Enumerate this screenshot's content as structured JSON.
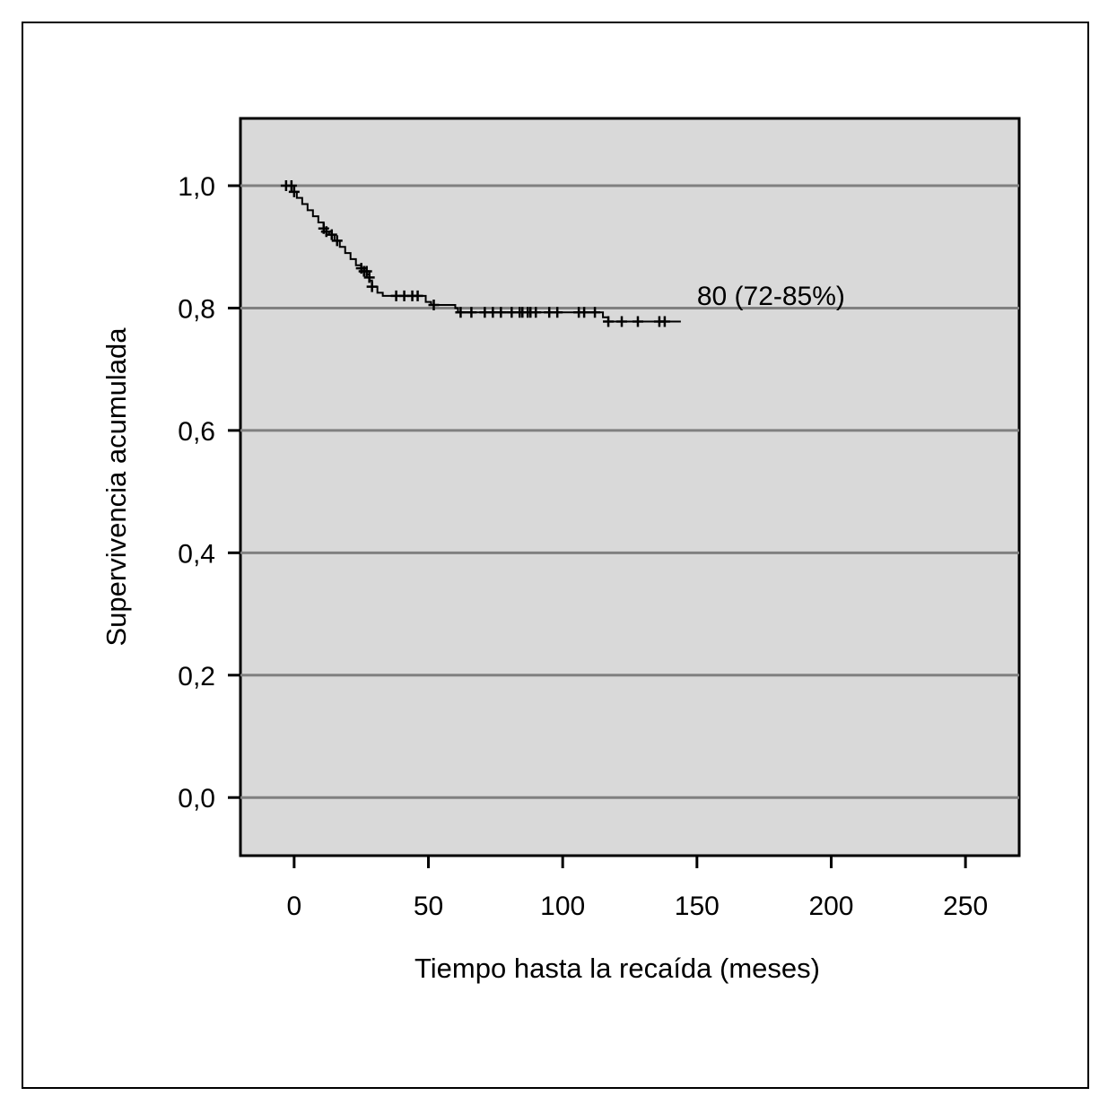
{
  "chart_data": {
    "type": "line",
    "xlabel": "Tiempo hasta la recaída (meses)",
    "ylabel": "Supervivencia acumulada",
    "xlim": [
      -20,
      270
    ],
    "ylim": [
      -0.095,
      1.11
    ],
    "xticks": [
      0,
      50,
      100,
      150,
      200,
      250
    ],
    "xtick_labels": [
      "0",
      "50",
      "100",
      "150",
      "200",
      "250"
    ],
    "yticks": [
      0.0,
      0.2,
      0.4,
      0.6,
      0.8,
      1.0
    ],
    "ytick_labels": [
      "0,0",
      "0,2",
      "0,4",
      "0,6",
      "0,8",
      "1,0"
    ],
    "grid": "horizontal",
    "legend": "none",
    "annotation": {
      "text": "80 (72-85%)",
      "x": 150,
      "y": 0.82
    },
    "colors": {
      "plot_background": "#d9d9d9",
      "gridline": "#808080",
      "line": "#000000"
    },
    "series": [
      {
        "steps": [
          [
            -4,
            1.0
          ],
          [
            0,
            0.99
          ],
          [
            1,
            0.98
          ],
          [
            3,
            0.97
          ],
          [
            5,
            0.96
          ],
          [
            7,
            0.95
          ],
          [
            9,
            0.94
          ],
          [
            11,
            0.93
          ],
          [
            12,
            0.925
          ],
          [
            13,
            0.92
          ],
          [
            15,
            0.91
          ],
          [
            17,
            0.9
          ],
          [
            19,
            0.89
          ],
          [
            21,
            0.88
          ],
          [
            23,
            0.87
          ],
          [
            25,
            0.86
          ],
          [
            27,
            0.855
          ],
          [
            28,
            0.845
          ],
          [
            29,
            0.835
          ],
          [
            31,
            0.825
          ],
          [
            33,
            0.82
          ],
          [
            49,
            0.81
          ],
          [
            51,
            0.805
          ],
          [
            60,
            0.8
          ],
          [
            61,
            0.793
          ],
          [
            115,
            0.785
          ],
          [
            117,
            0.778
          ],
          [
            144,
            0.778
          ]
        ],
        "censored": [
          [
            -3,
            1.0
          ],
          [
            -1,
            1.0
          ],
          [
            0,
            0.99
          ],
          [
            11,
            0.93
          ],
          [
            12,
            0.925
          ],
          [
            14,
            0.92
          ],
          [
            16,
            0.91
          ],
          [
            25,
            0.865
          ],
          [
            26,
            0.86
          ],
          [
            27,
            0.86
          ],
          [
            28,
            0.85
          ],
          [
            29,
            0.835
          ],
          [
            38,
            0.82
          ],
          [
            41,
            0.82
          ],
          [
            44,
            0.82
          ],
          [
            46,
            0.82
          ],
          [
            52,
            0.805
          ],
          [
            62,
            0.793
          ],
          [
            66,
            0.793
          ],
          [
            71,
            0.793
          ],
          [
            74,
            0.793
          ],
          [
            77,
            0.793
          ],
          [
            81,
            0.793
          ],
          [
            84,
            0.793
          ],
          [
            85,
            0.793
          ],
          [
            87,
            0.793
          ],
          [
            88,
            0.793
          ],
          [
            90,
            0.793
          ],
          [
            95,
            0.793
          ],
          [
            98,
            0.793
          ],
          [
            106,
            0.793
          ],
          [
            108,
            0.793
          ],
          [
            112,
            0.793
          ],
          [
            117,
            0.778
          ],
          [
            122,
            0.778
          ],
          [
            128,
            0.778
          ],
          [
            136,
            0.778
          ],
          [
            138,
            0.778
          ]
        ]
      }
    ]
  }
}
